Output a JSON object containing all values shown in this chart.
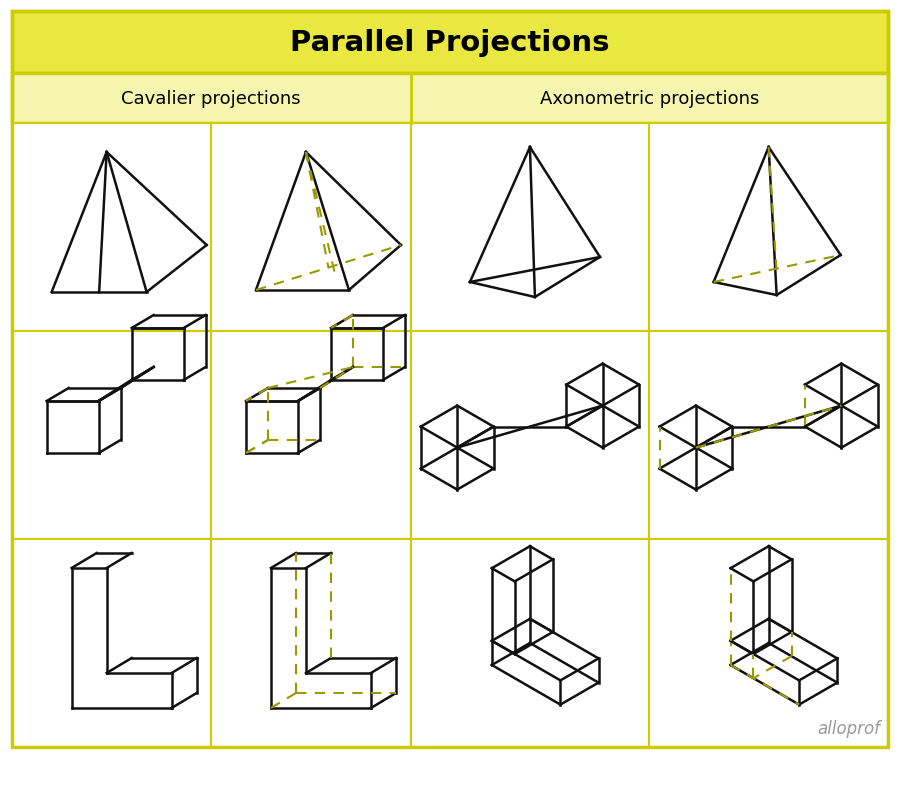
{
  "title": "Parallel Projections",
  "col1_label": "Cavalier projections",
  "col2_label": "Axonometric projections",
  "title_bg": "#e8e840",
  "header_bg": "#f5f5b0",
  "cell_bg": "#ffffff",
  "grid_color": "#cccccc",
  "dashed_color": "#999900",
  "line_color": "#111111",
  "border_color": "#cccc00",
  "watermark": "alloprof",
  "watermark_color": "#999999"
}
